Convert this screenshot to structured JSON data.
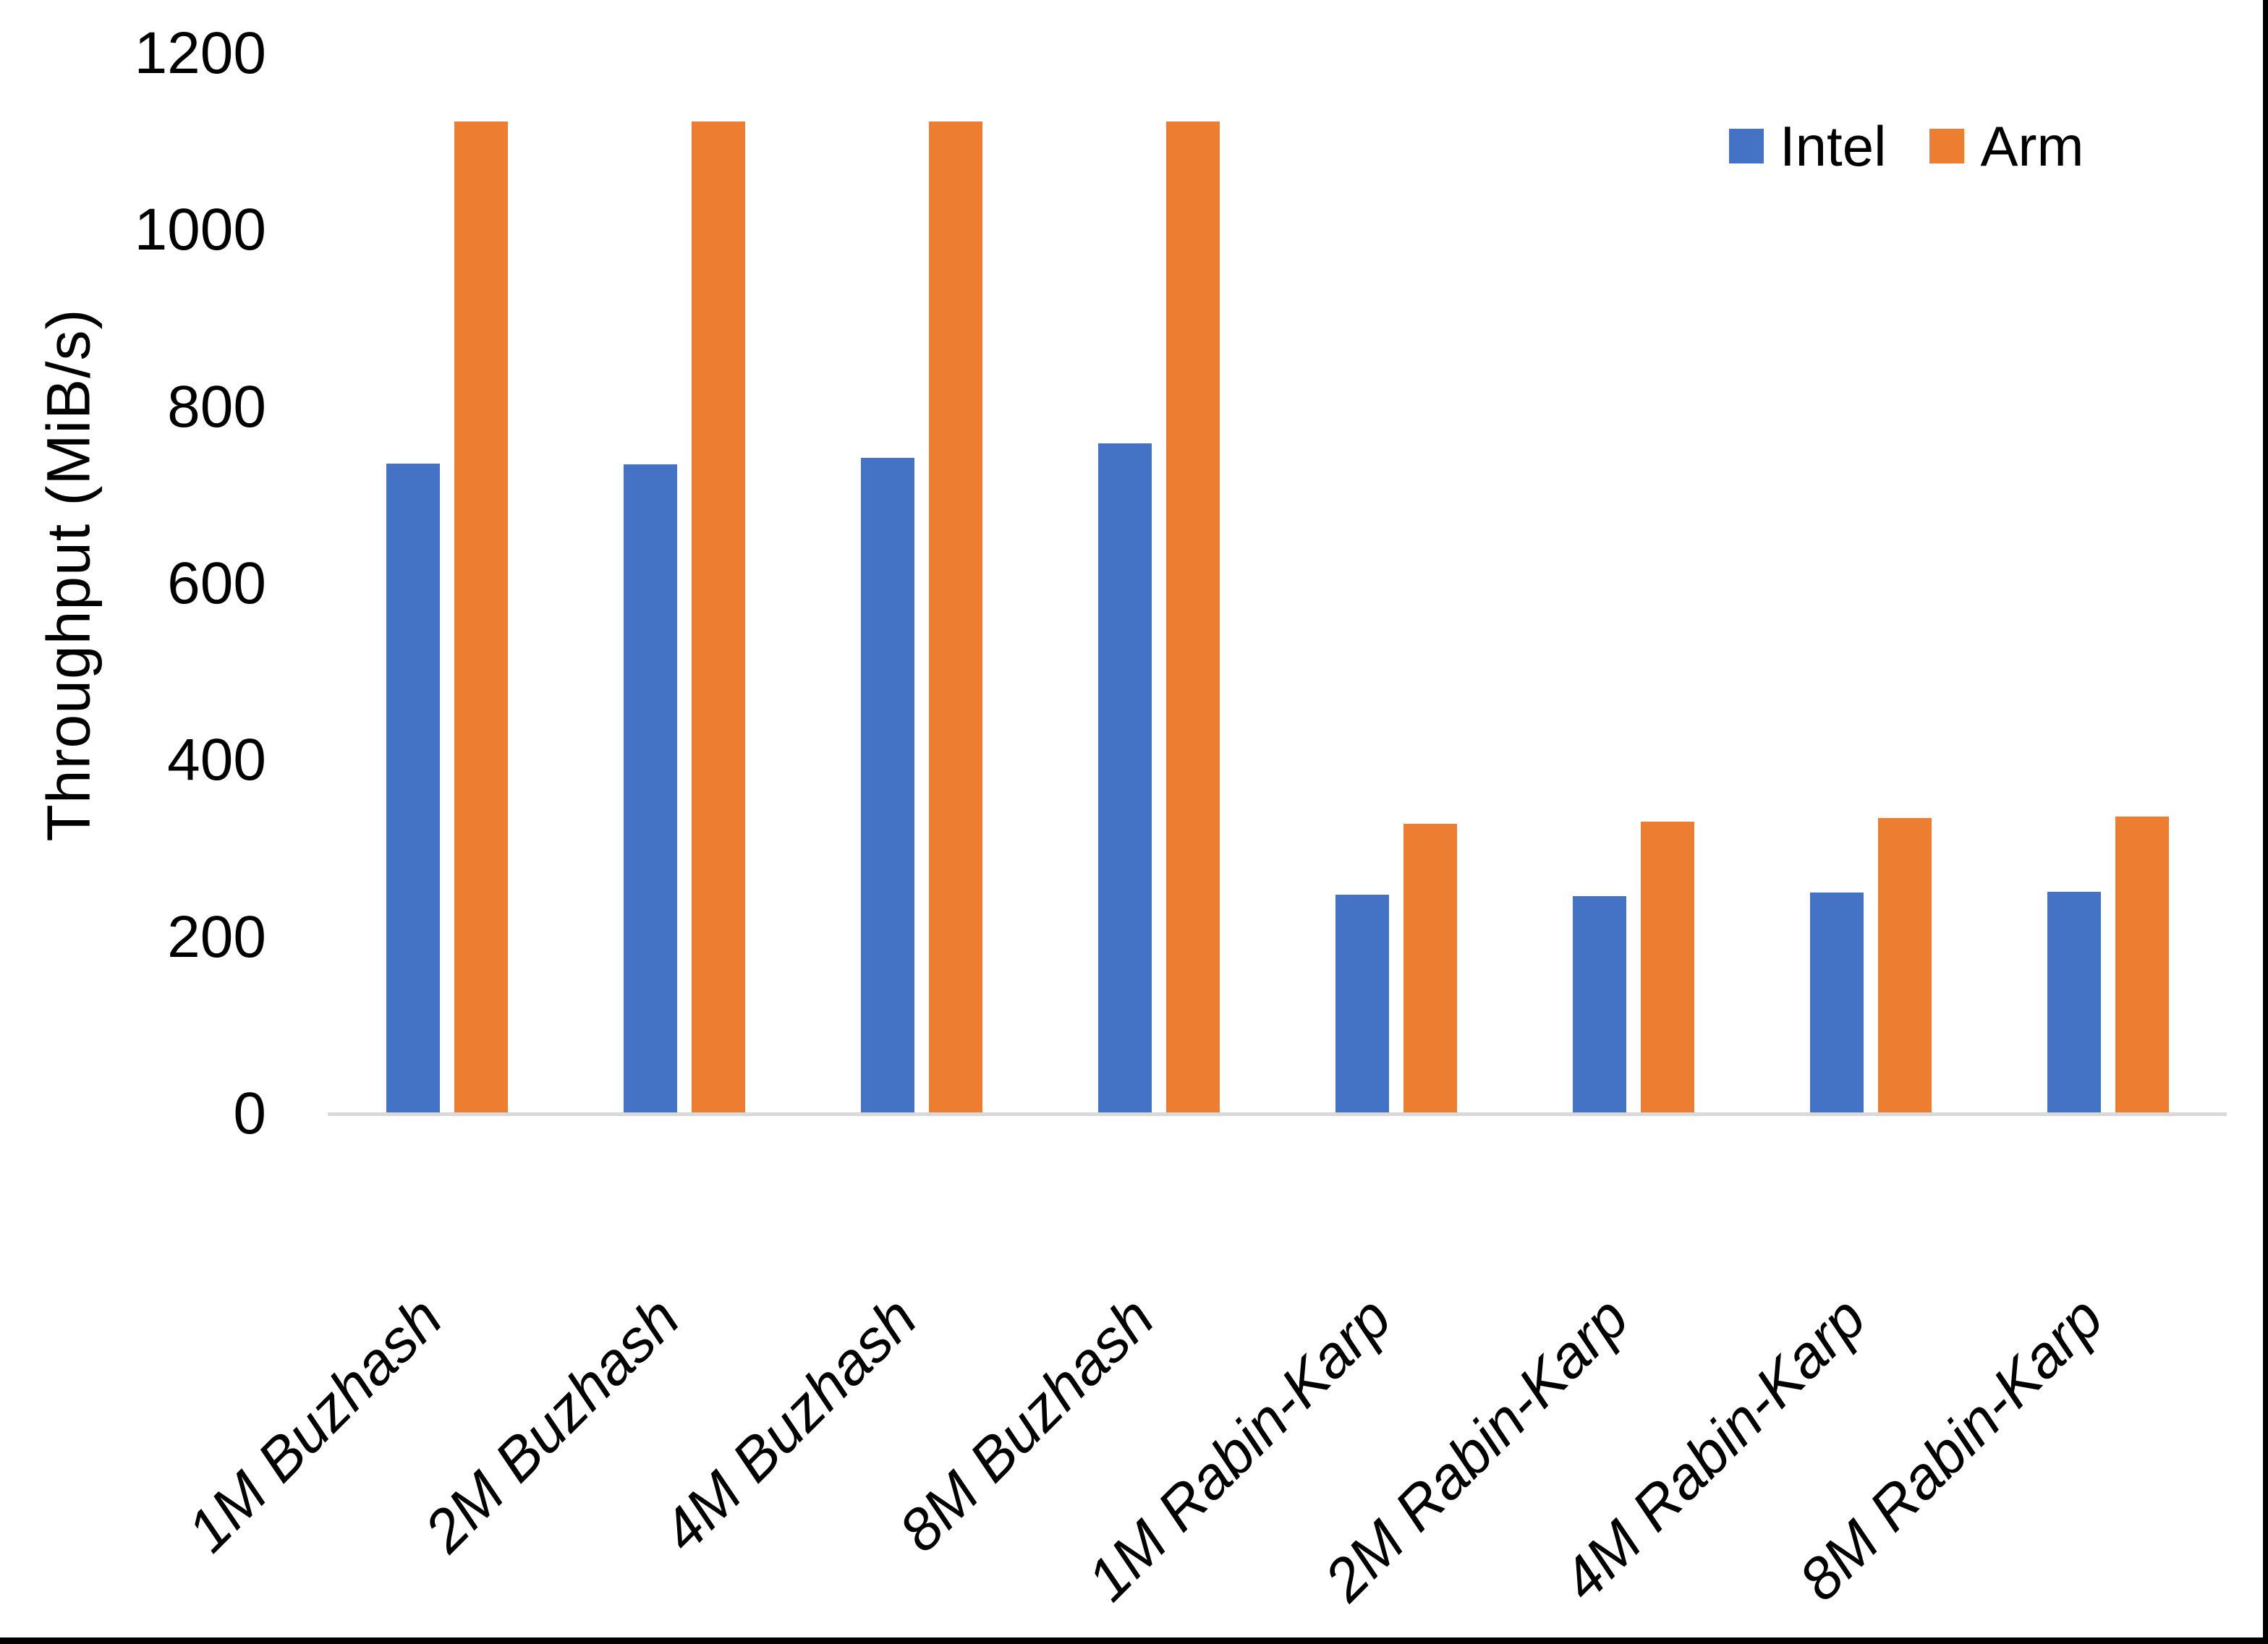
{
  "chart_data": {
    "type": "bar",
    "title": "",
    "xlabel": "",
    "ylabel": "Throughput (MiB/s)",
    "categories": [
      "1M Buzhash",
      "2M Buzhash",
      "4M Buzhash",
      "8M Buzhash",
      "1M Rabin-Karp",
      "2M Rabin-Karp",
      "4M Rabin-Karp",
      "8M Rabin-Karp"
    ],
    "series": [
      {
        "name": "Intel",
        "color": "#4472C4",
        "values": [
          734,
          733,
          741,
          757,
          246,
          245,
          249,
          250
        ]
      },
      {
        "name": "Arm",
        "color": "#ED7D31",
        "values": [
          1121,
          1121,
          1121,
          1121,
          327,
          329,
          333,
          335
        ]
      }
    ],
    "ylim": [
      0,
      1200
    ],
    "yticks": [
      0,
      200,
      400,
      600,
      800,
      1000,
      1200
    ],
    "grid": false,
    "legend_position": "top-right",
    "axis_line_color": "#D9D9D9",
    "text_color": "#000000"
  }
}
